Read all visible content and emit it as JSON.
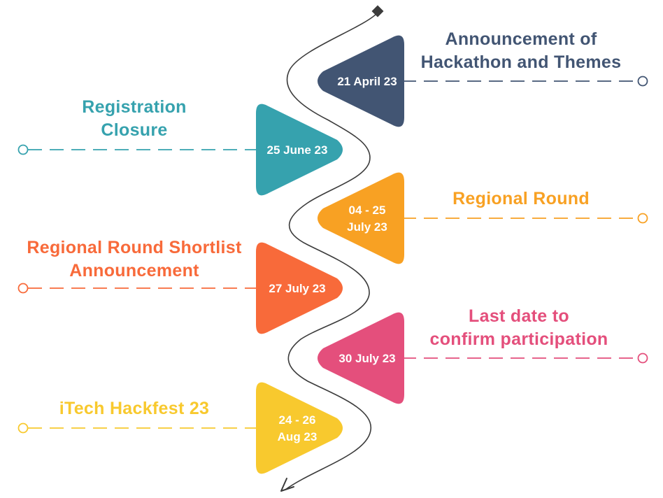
{
  "colors": {
    "path": "#3b3b3b",
    "e1": "#425573",
    "e2": "#36a2ae",
    "e3": "#f8a123",
    "e4": "#f86a3a",
    "e5": "#e44f7c",
    "e6": "#f8c92e",
    "date_text": "#ffffff"
  },
  "events": [
    {
      "date_lines": [
        "21 April 23"
      ],
      "title_lines": [
        "Announcement of",
        "Hackathon and Themes"
      ],
      "side": "right",
      "color_key": "e1"
    },
    {
      "date_lines": [
        "25 June 23"
      ],
      "title_lines": [
        "Registration",
        "Closure"
      ],
      "side": "left",
      "color_key": "e2"
    },
    {
      "date_lines": [
        "04 - 25",
        "July 23"
      ],
      "title_lines": [
        "Regional Round"
      ],
      "side": "right",
      "color_key": "e3"
    },
    {
      "date_lines": [
        "27 July 23"
      ],
      "title_lines": [
        "Regional Round Shortlist",
        "Announcement"
      ],
      "side": "left",
      "color_key": "e4"
    },
    {
      "date_lines": [
        "30 July 23"
      ],
      "title_lines": [
        "Last date to",
        "confirm participation"
      ],
      "side": "right",
      "color_key": "e5"
    },
    {
      "date_lines": [
        "24 - 26",
        "Aug 23"
      ],
      "title_lines": [
        "iTech Hackfest 23"
      ],
      "side": "left",
      "color_key": "e6"
    }
  ]
}
